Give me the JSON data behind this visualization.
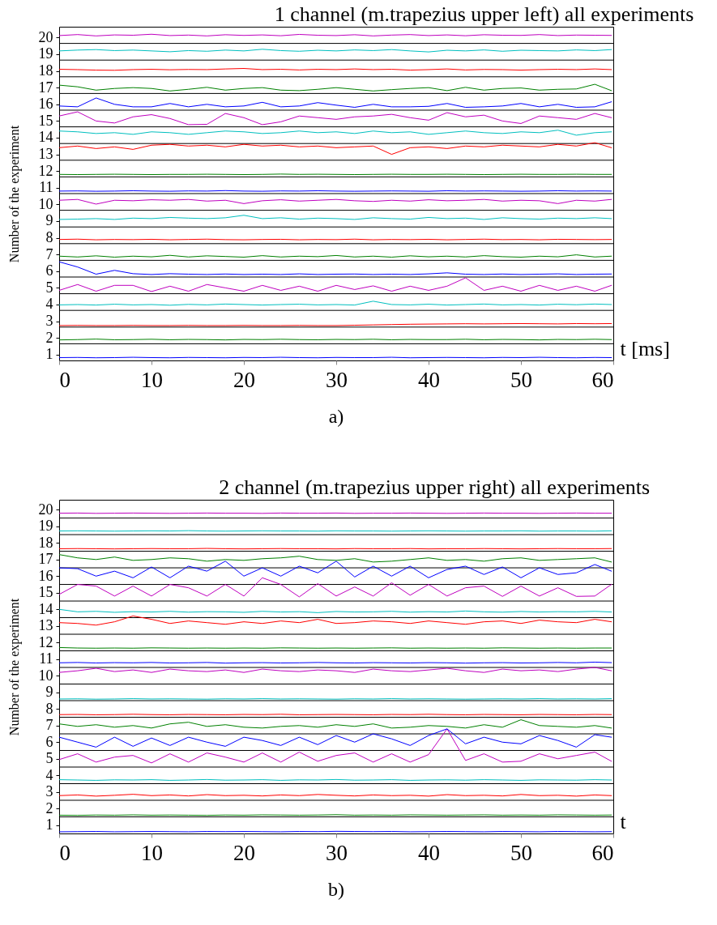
{
  "chart_data": [
    {
      "type": "line",
      "title": "1 channel (m.trapezius upper left) all experiments",
      "xlabel": "t [ms]",
      "ylabel": "Number of the experiment",
      "annotations": [
        "a)"
      ],
      "x": [
        0,
        2,
        4,
        6,
        8,
        10,
        12,
        14,
        16,
        18,
        20,
        22,
        24,
        26,
        28,
        30,
        32,
        34,
        36,
        38,
        40,
        42,
        44,
        46,
        48,
        50,
        52,
        54,
        56,
        58,
        59.8
      ],
      "xlim": [
        0,
        60
      ],
      "xticks": [
        0,
        10,
        20,
        30,
        40,
        50,
        60
      ],
      "ylim": [
        0.65,
        20.65
      ],
      "yticks": [
        1,
        2,
        3,
        4,
        5,
        6,
        7,
        8,
        9,
        10,
        11,
        12,
        13,
        14,
        15,
        16,
        17,
        18,
        19,
        20
      ],
      "ref_lines": [
        {
          "axis": "y",
          "value": 1.65,
          "color": "#000000"
        },
        {
          "axis": "y",
          "value": 2.65,
          "color": "#000000"
        },
        {
          "axis": "y",
          "value": 3.65,
          "color": "#000000"
        },
        {
          "axis": "y",
          "value": 4.65,
          "color": "#000000"
        },
        {
          "axis": "y",
          "value": 5.65,
          "color": "#000000"
        },
        {
          "axis": "y",
          "value": 6.65,
          "color": "#000000"
        },
        {
          "axis": "y",
          "value": 7.65,
          "color": "#000000"
        },
        {
          "axis": "y",
          "value": 8.65,
          "color": "#000000"
        },
        {
          "axis": "y",
          "value": 9.65,
          "color": "#000000"
        },
        {
          "axis": "y",
          "value": 10.65,
          "color": "#000000"
        },
        {
          "axis": "y",
          "value": 11.65,
          "color": "#000000"
        },
        {
          "axis": "y",
          "value": 12.65,
          "color": "#000000"
        },
        {
          "axis": "y",
          "value": 13.65,
          "color": "#000000"
        },
        {
          "axis": "y",
          "value": 14.65,
          "color": "#000000"
        },
        {
          "axis": "y",
          "value": 15.65,
          "color": "#000000"
        },
        {
          "axis": "y",
          "value": 16.65,
          "color": "#000000"
        },
        {
          "axis": "y",
          "value": 17.65,
          "color": "#000000"
        },
        {
          "axis": "y",
          "value": 18.65,
          "color": "#000000"
        },
        {
          "axis": "y",
          "value": 19.65,
          "color": "#000000"
        }
      ],
      "series": [
        {
          "color": "#0000ff",
          "values": [
            0.82,
            0.83,
            0.81,
            0.82,
            0.84,
            0.82,
            0.81,
            0.83,
            0.82,
            0.81,
            0.83,
            0.82,
            0.84,
            0.82,
            0.81,
            0.83,
            0.82,
            0.82,
            0.84,
            0.81,
            0.82,
            0.83,
            0.82,
            0.81,
            0.83,
            0.82,
            0.84,
            0.82,
            0.81,
            0.83,
            0.82
          ]
        },
        {
          "color": "#008000",
          "values": [
            1.88,
            1.9,
            1.93,
            1.89,
            1.9,
            1.92,
            1.89,
            1.91,
            1.9,
            1.88,
            1.91,
            1.9,
            1.92,
            1.9,
            1.89,
            1.91,
            1.9,
            1.92,
            1.89,
            1.91,
            1.9,
            1.9,
            1.92,
            1.89,
            1.91,
            1.9,
            1.88,
            1.91,
            1.9,
            1.92,
            1.9
          ]
        },
        {
          "color": "#ff0000",
          "values": [
            2.74,
            2.75,
            2.74,
            2.74,
            2.75,
            2.74,
            2.74,
            2.75,
            2.74,
            2.74,
            2.75,
            2.74,
            2.74,
            2.75,
            2.74,
            2.74,
            2.76,
            2.78,
            2.8,
            2.82,
            2.83,
            2.84,
            2.85,
            2.84,
            2.85,
            2.86,
            2.85,
            2.84,
            2.86,
            2.85,
            2.86
          ]
        },
        {
          "color": "#00bfbf",
          "values": [
            3.98,
            4.0,
            3.97,
            4.02,
            3.98,
            4.0,
            3.96,
            4.01,
            3.98,
            4.03,
            4.0,
            3.97,
            4.0,
            4.02,
            3.98,
            4.0,
            3.97,
            4.2,
            4.0,
            3.98,
            4.02,
            3.97,
            4.0,
            4.03,
            3.98,
            4.0,
            3.97,
            4.02,
            3.99,
            4.03,
            4.0
          ]
        },
        {
          "color": "#bf00bf",
          "values": [
            4.85,
            5.2,
            4.8,
            5.15,
            5.15,
            4.78,
            5.1,
            4.8,
            5.2,
            5.0,
            4.8,
            5.15,
            4.85,
            5.1,
            4.8,
            5.15,
            4.9,
            5.12,
            4.8,
            5.1,
            4.85,
            5.1,
            5.6,
            4.85,
            5.1,
            4.8,
            5.15,
            4.85,
            5.1,
            4.8,
            5.15
          ]
        },
        {
          "color": "#0000ff",
          "values": [
            6.56,
            6.25,
            5.82,
            6.05,
            5.85,
            5.8,
            5.85,
            5.82,
            5.8,
            5.83,
            5.8,
            5.82,
            5.8,
            5.84,
            5.8,
            5.82,
            5.83,
            5.8,
            5.82,
            5.8,
            5.84,
            5.9,
            5.82,
            5.8,
            5.83,
            5.8,
            5.82,
            5.84,
            5.8,
            5.82,
            5.83
          ]
        },
        {
          "color": "#008000",
          "values": [
            6.9,
            6.85,
            6.92,
            6.84,
            6.9,
            6.86,
            6.95,
            6.85,
            6.92,
            6.88,
            6.84,
            6.93,
            6.85,
            6.9,
            6.87,
            6.94,
            6.85,
            6.9,
            6.84,
            6.92,
            6.86,
            6.9,
            6.85,
            6.93,
            6.87,
            6.84,
            6.9,
            6.86,
            6.98,
            6.85,
            6.9
          ]
        },
        {
          "color": "#ff0000",
          "values": [
            7.9,
            7.92,
            7.88,
            7.9,
            7.89,
            7.91,
            7.88,
            7.9,
            7.92,
            7.89,
            7.88,
            7.9,
            7.91,
            7.88,
            7.9,
            7.89,
            7.92,
            7.88,
            7.9,
            7.89,
            7.91,
            7.88,
            7.9,
            7.92,
            7.89,
            7.9,
            7.88,
            7.91,
            7.9,
            7.89,
            7.9
          ]
        },
        {
          "color": "#00bfbf",
          "values": [
            9.1,
            9.12,
            9.15,
            9.1,
            9.18,
            9.15,
            9.22,
            9.18,
            9.15,
            9.2,
            9.35,
            9.15,
            9.2,
            9.12,
            9.18,
            9.15,
            9.1,
            9.2,
            9.15,
            9.12,
            9.22,
            9.15,
            9.18,
            9.1,
            9.2,
            9.15,
            9.12,
            9.18,
            9.15,
            9.2,
            9.15
          ]
        },
        {
          "color": "#bf00bf",
          "values": [
            10.25,
            10.3,
            10.02,
            10.25,
            10.22,
            10.28,
            10.25,
            10.3,
            10.2,
            10.25,
            10.05,
            10.22,
            10.28,
            10.2,
            10.25,
            10.3,
            10.22,
            10.18,
            10.25,
            10.2,
            10.28,
            10.22,
            10.25,
            10.3,
            10.2,
            10.25,
            10.22,
            10.05,
            10.25,
            10.2,
            10.3
          ]
        },
        {
          "color": "#0000ff",
          "values": [
            10.8,
            10.81,
            10.79,
            10.8,
            10.82,
            10.8,
            10.79,
            10.81,
            10.8,
            10.83,
            10.8,
            10.79,
            10.81,
            10.8,
            10.82,
            10.8,
            10.79,
            10.8,
            10.81,
            10.8,
            10.79,
            10.82,
            10.8,
            10.81,
            10.8,
            10.79,
            10.8,
            10.82,
            10.8,
            10.81,
            10.8
          ]
        },
        {
          "color": "#008000",
          "values": [
            11.8,
            11.79,
            11.8,
            11.81,
            11.8,
            11.79,
            11.8,
            11.8,
            11.81,
            11.8,
            11.79,
            11.8,
            11.82,
            11.8,
            11.81,
            11.8,
            11.79,
            11.8,
            11.81,
            11.8,
            11.8,
            11.81,
            11.8,
            11.79,
            11.8,
            11.81,
            11.8,
            11.8,
            11.81,
            11.8,
            11.8
          ]
        },
        {
          "color": "#ff0000",
          "values": [
            13.4,
            13.5,
            13.35,
            13.45,
            13.3,
            13.55,
            13.6,
            13.5,
            13.55,
            13.45,
            13.6,
            13.5,
            13.55,
            13.45,
            13.5,
            13.4,
            13.45,
            13.5,
            13.0,
            13.4,
            13.45,
            13.35,
            13.5,
            13.45,
            13.55,
            13.5,
            13.45,
            13.6,
            13.5,
            13.7,
            13.4
          ]
        },
        {
          "color": "#00bfbf",
          "values": [
            14.4,
            14.35,
            14.25,
            14.3,
            14.2,
            14.35,
            14.3,
            14.2,
            14.3,
            14.4,
            14.35,
            14.25,
            14.3,
            14.4,
            14.3,
            14.35,
            14.25,
            14.4,
            14.3,
            14.35,
            14.2,
            14.3,
            14.4,
            14.3,
            14.25,
            14.35,
            14.3,
            14.45,
            14.15,
            14.3,
            14.35
          ]
        },
        {
          "color": "#bf00bf",
          "values": [
            15.3,
            15.55,
            15.0,
            14.88,
            15.25,
            15.38,
            15.15,
            14.78,
            14.8,
            15.45,
            15.2,
            14.78,
            14.95,
            15.3,
            15.2,
            15.1,
            15.25,
            15.3,
            15.4,
            15.2,
            15.05,
            15.5,
            15.25,
            15.35,
            15.0,
            14.85,
            15.3,
            15.2,
            15.1,
            15.45,
            15.2
          ]
        },
        {
          "color": "#0000ff",
          "values": [
            15.9,
            15.85,
            16.38,
            16.0,
            15.85,
            15.85,
            16.05,
            15.85,
            16.0,
            15.85,
            15.9,
            16.12,
            15.85,
            15.9,
            16.1,
            15.95,
            15.82,
            16.0,
            15.85,
            15.85,
            15.88,
            16.05,
            15.82,
            15.85,
            15.9,
            16.05,
            15.85,
            16.0,
            15.82,
            15.85,
            16.15
          ]
        },
        {
          "color": "#008000",
          "values": [
            17.15,
            17.05,
            16.85,
            16.95,
            17.0,
            16.95,
            16.8,
            16.9,
            17.02,
            16.85,
            16.95,
            17.0,
            16.85,
            16.82,
            16.9,
            17.0,
            16.9,
            16.8,
            16.88,
            16.95,
            17.0,
            16.82,
            17.02,
            16.85,
            16.95,
            16.98,
            16.85,
            16.9,
            16.92,
            17.2,
            16.82
          ]
        },
        {
          "color": "#ff0000",
          "values": [
            18.1,
            18.08,
            18.05,
            18.04,
            18.08,
            18.1,
            18.07,
            18.09,
            18.08,
            18.12,
            18.15,
            18.08,
            18.1,
            18.06,
            18.1,
            18.08,
            18.12,
            18.08,
            18.1,
            18.05,
            18.08,
            18.12,
            18.06,
            18.09,
            18.08,
            18.05,
            18.08,
            18.1,
            18.08,
            18.12,
            18.08
          ]
        },
        {
          "color": "#00bfbf",
          "values": [
            19.2,
            19.25,
            19.28,
            19.22,
            19.25,
            19.2,
            19.15,
            19.22,
            19.18,
            19.25,
            19.2,
            19.3,
            19.22,
            19.18,
            19.24,
            19.2,
            19.26,
            19.22,
            19.28,
            19.2,
            19.14,
            19.24,
            19.2,
            19.26,
            19.18,
            19.24,
            19.22,
            19.2,
            19.26,
            19.22,
            19.28
          ]
        },
        {
          "color": "#bf00bf",
          "values": [
            20.12,
            20.18,
            20.1,
            20.16,
            20.14,
            20.2,
            20.12,
            20.15,
            20.1,
            20.17,
            20.13,
            20.16,
            20.11,
            20.19,
            20.14,
            20.12,
            20.17,
            20.1,
            20.15,
            20.18,
            20.12,
            20.16,
            20.11,
            20.17,
            20.14,
            20.13,
            20.18,
            20.12,
            20.15,
            20.14,
            20.13
          ]
        }
      ]
    },
    {
      "type": "line",
      "title": "2 channel (m.trapezius upper right) all experiments",
      "xlabel": "t",
      "ylabel": "Number of the experiment",
      "annotations": [
        "b)"
      ],
      "x": [
        0,
        2,
        4,
        6,
        8,
        10,
        12,
        14,
        16,
        18,
        20,
        22,
        24,
        26,
        28,
        30,
        32,
        34,
        36,
        38,
        40,
        42,
        44,
        46,
        48,
        50,
        52,
        54,
        56,
        58,
        59.8
      ],
      "xlim": [
        0,
        60
      ],
      "xticks": [
        0,
        10,
        20,
        30,
        40,
        50,
        60
      ],
      "ylim": [
        0.5,
        20.6
      ],
      "yticks": [
        1,
        2,
        3,
        4,
        5,
        6,
        7,
        8,
        9,
        10,
        11,
        12,
        13,
        14,
        15,
        16,
        17,
        18,
        19,
        20
      ],
      "ref_lines": [
        {
          "axis": "y",
          "value": 1.5,
          "color": "#000000"
        },
        {
          "axis": "y",
          "value": 2.5,
          "color": "#000000"
        },
        {
          "axis": "y",
          "value": 3.5,
          "color": "#000000"
        },
        {
          "axis": "y",
          "value": 4.5,
          "color": "#000000"
        },
        {
          "axis": "y",
          "value": 5.5,
          "color": "#000000"
        },
        {
          "axis": "y",
          "value": 6.5,
          "color": "#000000"
        },
        {
          "axis": "y",
          "value": 7.5,
          "color": "#000000"
        },
        {
          "axis": "y",
          "value": 8.5,
          "color": "#000000"
        },
        {
          "axis": "y",
          "value": 9.5,
          "color": "#000000"
        },
        {
          "axis": "y",
          "value": 10.5,
          "color": "#000000"
        },
        {
          "axis": "y",
          "value": 11.5,
          "color": "#000000"
        },
        {
          "axis": "y",
          "value": 12.5,
          "color": "#000000"
        },
        {
          "axis": "y",
          "value": 13.5,
          "color": "#000000"
        },
        {
          "axis": "y",
          "value": 14.5,
          "color": "#000000"
        },
        {
          "axis": "y",
          "value": 15.5,
          "color": "#000000"
        },
        {
          "axis": "y",
          "value": 16.5,
          "color": "#000000"
        },
        {
          "axis": "y",
          "value": 17.5,
          "color": "#000000"
        },
        {
          "axis": "y",
          "value": 18.5,
          "color": "#000000"
        },
        {
          "axis": "y",
          "value": 19.5,
          "color": "#000000"
        }
      ],
      "series": [
        {
          "color": "#0000ff",
          "values": [
            0.6,
            0.61,
            0.62,
            0.6,
            0.61,
            0.62,
            0.61,
            0.6,
            0.62,
            0.61,
            0.62,
            0.61,
            0.6,
            0.62,
            0.61,
            0.63,
            0.62,
            0.61,
            0.62,
            0.6,
            0.61,
            0.62,
            0.61,
            0.6,
            0.62,
            0.61,
            0.6,
            0.62,
            0.61,
            0.6,
            0.61
          ]
        },
        {
          "color": "#008000",
          "values": [
            1.6,
            1.59,
            1.61,
            1.6,
            1.62,
            1.6,
            1.61,
            1.6,
            1.59,
            1.61,
            1.6,
            1.62,
            1.61,
            1.6,
            1.61,
            1.63,
            1.6,
            1.61,
            1.6,
            1.62,
            1.61,
            1.6,
            1.61,
            1.62,
            1.6,
            1.61,
            1.6,
            1.62,
            1.61,
            1.6,
            1.61
          ]
        },
        {
          "color": "#ff0000",
          "values": [
            2.78,
            2.82,
            2.75,
            2.8,
            2.86,
            2.78,
            2.82,
            2.76,
            2.84,
            2.78,
            2.8,
            2.76,
            2.82,
            2.78,
            2.85,
            2.8,
            2.76,
            2.82,
            2.78,
            2.8,
            2.75,
            2.84,
            2.78,
            2.8,
            2.76,
            2.85,
            2.78,
            2.8,
            2.75,
            2.82,
            2.78
          ]
        },
        {
          "color": "#00bfbf",
          "values": [
            3.74,
            3.72,
            3.7,
            3.73,
            3.72,
            3.74,
            3.7,
            3.72,
            3.75,
            3.71,
            3.72,
            3.74,
            3.7,
            3.73,
            3.72,
            3.75,
            3.71,
            3.72,
            3.74,
            3.7,
            3.72,
            3.73,
            3.71,
            3.74,
            3.72,
            3.7,
            3.73,
            3.72,
            3.71,
            3.74,
            3.72
          ]
        },
        {
          "color": "#bf00bf",
          "values": [
            4.95,
            5.3,
            4.8,
            5.1,
            5.2,
            4.75,
            5.3,
            4.8,
            5.35,
            5.1,
            4.8,
            5.35,
            4.8,
            5.4,
            4.85,
            5.2,
            5.35,
            4.8,
            5.3,
            4.8,
            5.25,
            6.8,
            4.9,
            5.3,
            4.8,
            4.85,
            5.3,
            5.0,
            5.2,
            5.4,
            4.85
          ]
        },
        {
          "color": "#0000ff",
          "values": [
            6.3,
            6.0,
            5.7,
            6.3,
            5.75,
            6.25,
            5.8,
            6.3,
            6.0,
            5.75,
            6.3,
            6.1,
            5.8,
            6.3,
            5.85,
            6.4,
            6.0,
            6.5,
            6.2,
            5.8,
            6.4,
            6.8,
            5.9,
            6.3,
            6.0,
            5.9,
            6.4,
            6.1,
            5.7,
            6.45,
            6.3
          ]
        },
        {
          "color": "#008000",
          "values": [
            7.1,
            6.95,
            7.05,
            6.9,
            7.0,
            6.85,
            7.1,
            7.2,
            6.95,
            7.05,
            6.9,
            6.85,
            6.95,
            7.0,
            6.9,
            7.05,
            6.95,
            7.1,
            6.85,
            6.9,
            7.0,
            6.95,
            6.85,
            7.05,
            6.9,
            7.35,
            7.0,
            6.95,
            6.9,
            7.0,
            6.85
          ]
        },
        {
          "color": "#ff0000",
          "values": [
            7.66,
            7.67,
            7.65,
            7.66,
            7.68,
            7.66,
            7.65,
            7.67,
            7.66,
            7.65,
            7.67,
            7.66,
            7.68,
            7.65,
            7.66,
            7.67,
            7.66,
            7.65,
            7.67,
            7.66,
            7.68,
            7.66,
            7.65,
            7.67,
            7.66,
            7.65,
            7.67,
            7.66,
            7.65,
            7.67,
            7.66
          ]
        },
        {
          "color": "#00bfbf",
          "values": [
            8.6,
            8.61,
            8.59,
            8.6,
            8.62,
            8.6,
            8.61,
            8.6,
            8.59,
            8.61,
            8.6,
            8.62,
            8.6,
            8.61,
            8.6,
            8.59,
            8.61,
            8.6,
            8.62,
            8.6,
            8.61,
            8.6,
            8.59,
            8.6,
            8.61,
            8.6,
            8.62,
            8.6,
            8.61,
            8.6,
            8.62
          ]
        },
        {
          "color": "#bf00bf",
          "values": [
            10.2,
            10.3,
            10.45,
            10.25,
            10.35,
            10.2,
            10.4,
            10.3,
            10.25,
            10.35,
            10.2,
            10.4,
            10.3,
            10.25,
            10.35,
            10.3,
            10.2,
            10.4,
            10.3,
            10.25,
            10.35,
            10.45,
            10.3,
            10.2,
            10.4,
            10.3,
            10.35,
            10.25,
            10.4,
            10.5,
            10.3
          ]
        },
        {
          "color": "#0000ff",
          "values": [
            10.78,
            10.8,
            10.77,
            10.79,
            10.78,
            10.8,
            10.77,
            10.78,
            10.8,
            10.76,
            10.78,
            10.79,
            10.77,
            10.78,
            10.8,
            10.78,
            10.77,
            10.79,
            10.78,
            10.77,
            10.79,
            10.78,
            10.76,
            10.78,
            10.79,
            10.77,
            10.78,
            10.8,
            10.78,
            10.82,
            10.79
          ]
        },
        {
          "color": "#008000",
          "values": [
            11.7,
            11.67,
            11.66,
            11.67,
            11.66,
            11.68,
            11.67,
            11.66,
            11.67,
            11.66,
            11.67,
            11.66,
            11.68,
            11.67,
            11.66,
            11.67,
            11.66,
            11.67,
            11.68,
            11.66,
            11.67,
            11.66,
            11.67,
            11.66,
            11.68,
            11.67,
            11.66,
            11.67,
            11.66,
            11.67,
            11.67
          ]
        },
        {
          "color": "#ff0000",
          "values": [
            13.2,
            13.15,
            13.05,
            13.25,
            13.6,
            13.4,
            13.15,
            13.3,
            13.2,
            13.1,
            13.25,
            13.15,
            13.3,
            13.2,
            13.4,
            13.15,
            13.2,
            13.3,
            13.25,
            13.15,
            13.3,
            13.2,
            13.1,
            13.25,
            13.3,
            13.15,
            13.35,
            13.25,
            13.2,
            13.4,
            13.25
          ]
        },
        {
          "color": "#00bfbf",
          "values": [
            14.0,
            13.85,
            13.88,
            13.82,
            13.86,
            13.84,
            13.88,
            13.83,
            13.86,
            13.85,
            13.82,
            13.88,
            13.84,
            13.86,
            13.8,
            13.87,
            13.84,
            13.85,
            13.88,
            13.83,
            13.86,
            13.84,
            13.9,
            13.85,
            13.83,
            13.87,
            13.84,
            13.86,
            13.85,
            13.88,
            13.84
          ]
        },
        {
          "color": "#bf00bf",
          "values": [
            14.9,
            15.5,
            15.4,
            14.8,
            15.4,
            14.8,
            15.5,
            15.3,
            14.8,
            15.5,
            14.8,
            15.9,
            15.5,
            14.75,
            15.55,
            14.8,
            15.35,
            14.8,
            15.6,
            14.85,
            15.5,
            14.8,
            15.3,
            15.4,
            14.78,
            15.4,
            14.8,
            15.3,
            14.78,
            14.8,
            15.5
          ]
        },
        {
          "color": "#0000ff",
          "values": [
            16.5,
            16.45,
            16.0,
            16.3,
            15.9,
            16.55,
            15.9,
            16.6,
            16.3,
            16.9,
            16.0,
            16.5,
            16.0,
            16.6,
            16.2,
            16.9,
            15.95,
            16.6,
            16.0,
            16.6,
            15.9,
            16.4,
            16.6,
            16.1,
            16.55,
            15.9,
            16.5,
            16.1,
            16.2,
            16.7,
            16.3
          ]
        },
        {
          "color": "#008000",
          "values": [
            17.3,
            17.1,
            17.0,
            17.15,
            16.95,
            17.0,
            17.1,
            17.05,
            16.9,
            17.0,
            16.95,
            17.05,
            17.1,
            17.2,
            17.0,
            16.95,
            17.05,
            16.85,
            16.9,
            17.0,
            17.1,
            16.95,
            17.0,
            16.9,
            17.05,
            17.1,
            16.95,
            17.0,
            17.05,
            17.1,
            16.85
          ]
        },
        {
          "color": "#ff0000",
          "values": [
            17.65,
            17.66,
            17.65,
            17.64,
            17.65,
            17.66,
            17.65,
            17.65,
            17.67,
            17.65,
            17.64,
            17.65,
            17.66,
            17.65,
            17.65,
            17.64,
            17.66,
            17.65,
            17.65,
            17.66,
            17.64,
            17.65,
            17.65,
            17.66,
            17.65,
            17.64,
            17.65,
            17.66,
            17.65,
            17.65,
            17.66
          ]
        },
        {
          "color": "#00bfbf",
          "values": [
            18.72,
            18.73,
            18.72,
            18.71,
            18.72,
            18.73,
            18.72,
            18.74,
            18.72,
            18.71,
            18.72,
            18.73,
            18.72,
            18.72,
            18.71,
            18.73,
            18.72,
            18.72,
            18.71,
            18.72,
            18.73,
            18.72,
            18.71,
            18.72,
            18.72,
            18.73,
            18.71,
            18.72,
            18.72,
            18.71,
            18.73
          ]
        },
        {
          "color": "#bf00bf",
          "values": [
            19.79,
            19.8,
            19.78,
            19.79,
            19.8,
            19.79,
            19.78,
            19.79,
            19.8,
            19.79,
            19.79,
            19.78,
            19.8,
            19.79,
            19.79,
            19.8,
            19.78,
            19.79,
            19.79,
            19.8,
            19.79,
            19.78,
            19.79,
            19.8,
            19.79,
            19.79,
            19.78,
            19.79,
            19.8,
            19.79,
            19.79
          ]
        }
      ]
    }
  ]
}
